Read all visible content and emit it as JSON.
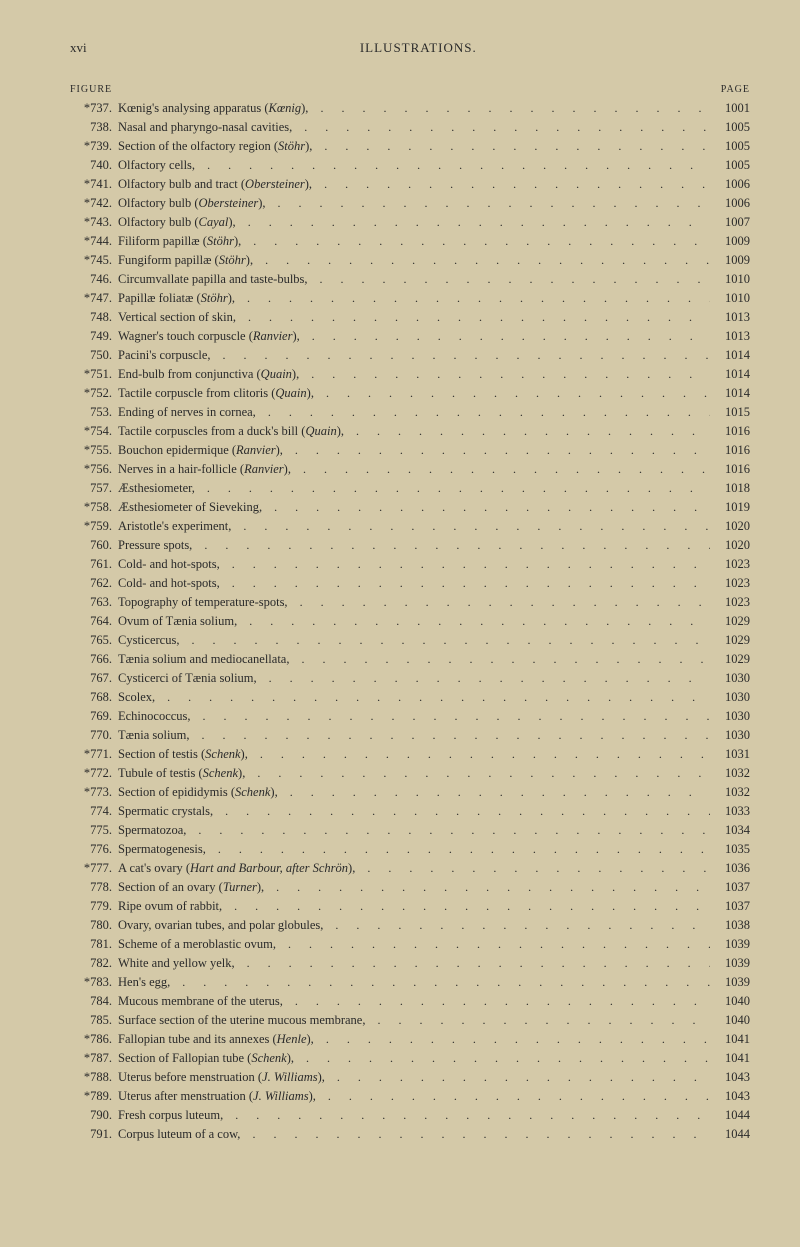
{
  "header": {
    "pageNumber": "xvi",
    "sectionTitle": "ILLUSTRATIONS."
  },
  "columnHeaders": {
    "figure": "FIGURE",
    "page": "PAGE"
  },
  "entries": [
    {
      "num": "*737.",
      "text": "Kœnig's analysing apparatus (<i>Kœnig</i>),",
      "page": "1001"
    },
    {
      "num": "738.",
      "text": "Nasal and pharyngo-nasal cavities,",
      "page": "1005"
    },
    {
      "num": "*739.",
      "text": "Section of the olfactory region (<i>Stöhr</i>),",
      "page": "1005"
    },
    {
      "num": "740.",
      "text": "Olfactory cells,",
      "page": "1005"
    },
    {
      "num": "*741.",
      "text": "Olfactory bulb and tract (<i>Obersteiner</i>),",
      "page": "1006"
    },
    {
      "num": "*742.",
      "text": "Olfactory bulb (<i>Obersteiner</i>),",
      "page": "1006"
    },
    {
      "num": "*743.",
      "text": "Olfactory bulb (<i>Cayal</i>),",
      "page": "1007"
    },
    {
      "num": "*744.",
      "text": "Filiform papillæ (<i>Stöhr</i>),",
      "page": "1009"
    },
    {
      "num": "*745.",
      "text": "Fungiform papillæ (<i>Stöhr</i>),",
      "page": "1009"
    },
    {
      "num": "746.",
      "text": "Circumvallate papilla and taste-bulbs,",
      "page": "1010"
    },
    {
      "num": "*747.",
      "text": "Papillæ foliatæ (<i>Stöhr</i>),",
      "page": "1010"
    },
    {
      "num": "748.",
      "text": "Vertical section of skin,",
      "page": "1013"
    },
    {
      "num": "749.",
      "text": "Wagner's touch corpuscle (<i>Ranvier</i>),",
      "page": "1013"
    },
    {
      "num": "750.",
      "text": "Pacini's corpuscle,",
      "page": "1014"
    },
    {
      "num": "*751.",
      "text": "End-bulb from conjunctiva (<i>Quain</i>),",
      "page": "1014"
    },
    {
      "num": "*752.",
      "text": "Tactile corpuscle from clitoris (<i>Quain</i>),",
      "page": "1014"
    },
    {
      "num": "753.",
      "text": "Ending of nerves in cornea,",
      "page": "1015"
    },
    {
      "num": "*754.",
      "text": "Tactile corpuscles from a duck's bill (<i>Quain</i>),",
      "page": "1016"
    },
    {
      "num": "*755.",
      "text": "Bouchon epidermique (<i>Ranvier</i>),",
      "page": "1016"
    },
    {
      "num": "*756.",
      "text": "Nerves in a hair-follicle (<i>Ranvier</i>),",
      "page": "1016"
    },
    {
      "num": "757.",
      "text": "Æsthesiometer,",
      "page": "1018"
    },
    {
      "num": "*758.",
      "text": "Æsthesiometer of Sieveking,",
      "page": "1019"
    },
    {
      "num": "*759.",
      "text": "Aristotle's experiment,",
      "page": "1020"
    },
    {
      "num": "760.",
      "text": "Pressure spots,",
      "page": "1020"
    },
    {
      "num": "761.",
      "text": "Cold- and hot-spots,",
      "page": "1023"
    },
    {
      "num": "762.",
      "text": "Cold- and hot-spots,",
      "page": "1023"
    },
    {
      "num": "763.",
      "text": "Topography of temperature-spots,",
      "page": "1023"
    },
    {
      "num": "764.",
      "text": "Ovum of Tænia solium,",
      "page": "1029"
    },
    {
      "num": "765.",
      "text": "Cysticercus,",
      "page": "1029"
    },
    {
      "num": "766.",
      "text": "Tænia solium and mediocanellata,",
      "page": "1029"
    },
    {
      "num": "767.",
      "text": "Cysticerci of Tænia solium,",
      "page": "1030"
    },
    {
      "num": "768.",
      "text": "Scolex,",
      "page": "1030"
    },
    {
      "num": "769.",
      "text": "Echinococcus,",
      "page": "1030"
    },
    {
      "num": "770.",
      "text": "Tænia solium,",
      "page": "1030"
    },
    {
      "num": "*771.",
      "text": "Section of testis (<i>Schenk</i>),",
      "page": "1031"
    },
    {
      "num": "*772.",
      "text": "Tubule of testis (<i>Schenk</i>),",
      "page": "1032"
    },
    {
      "num": "*773.",
      "text": "Section of epididymis (<i>Schenk</i>),",
      "page": "1032"
    },
    {
      "num": "774.",
      "text": "Spermatic crystals,",
      "page": "1033"
    },
    {
      "num": "775.",
      "text": "Spermatozoa,",
      "page": "1034"
    },
    {
      "num": "776.",
      "text": "Spermatogenesis,",
      "page": "1035"
    },
    {
      "num": "*777.",
      "text": "A cat's ovary (<i>Hart and Barbour, after Schrön</i>),",
      "page": "1036"
    },
    {
      "num": "778.",
      "text": "Section of an ovary (<i>Turner</i>),",
      "page": "1037"
    },
    {
      "num": "779.",
      "text": "Ripe ovum of rabbit,",
      "page": "1037"
    },
    {
      "num": "780.",
      "text": "Ovary, ovarian tubes, and polar globules,",
      "page": "1038"
    },
    {
      "num": "781.",
      "text": "Scheme of a meroblastic ovum,",
      "page": "1039"
    },
    {
      "num": "782.",
      "text": "White and yellow yelk,",
      "page": "1039"
    },
    {
      "num": "*783.",
      "text": "Hen's egg,",
      "page": "1039"
    },
    {
      "num": "784.",
      "text": "Mucous membrane of the uterus,",
      "page": "1040"
    },
    {
      "num": "785.",
      "text": "Surface section of the uterine mucous membrane,",
      "page": "1040"
    },
    {
      "num": "*786.",
      "text": "Fallopian tube and its annexes (<i>Henle</i>),",
      "page": "1041"
    },
    {
      "num": "*787.",
      "text": "Section of Fallopian tube (<i>Schenk</i>),",
      "page": "1041"
    },
    {
      "num": "*788.",
      "text": "Uterus before menstruation (<i>J. Williams</i>),",
      "page": "1043"
    },
    {
      "num": "*789.",
      "text": "Uterus after menstruation (<i>J. Williams</i>),",
      "page": "1043"
    },
    {
      "num": "790.",
      "text": "Fresh corpus luteum,",
      "page": "1044"
    },
    {
      "num": "791.",
      "text": "Corpus luteum of a cow,",
      "page": "1044"
    }
  ]
}
